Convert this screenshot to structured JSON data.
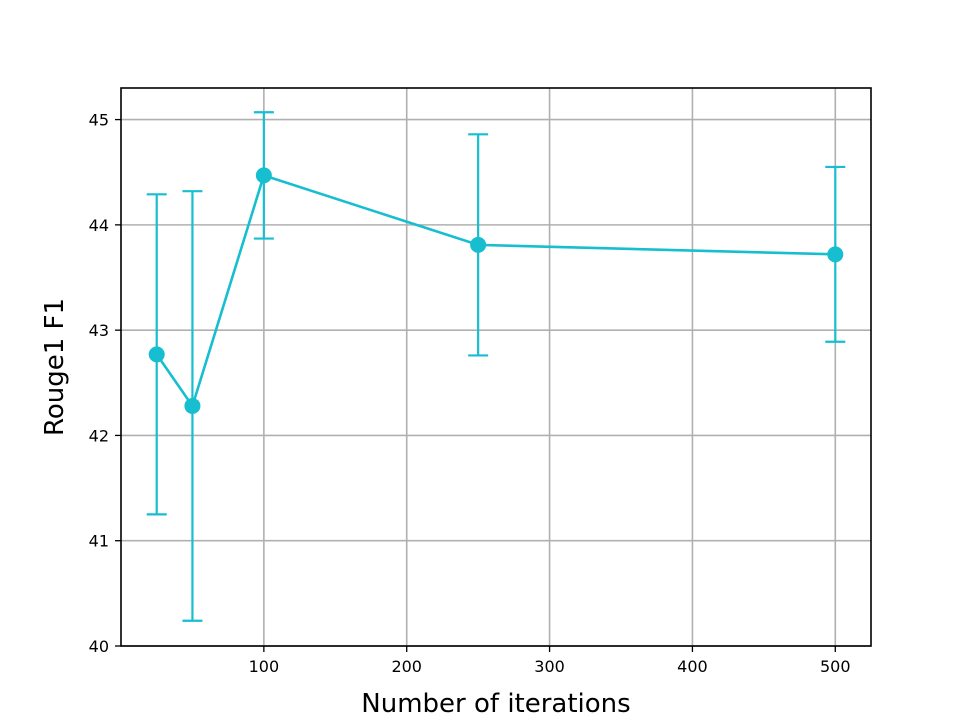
{
  "chart_data": {
    "type": "line",
    "title": "",
    "xlabel": "Number of iterations",
    "ylabel": "Rouge1 F1",
    "xlim": [
      0,
      525
    ],
    "ylim": [
      40,
      45.3
    ],
    "xticks": [
      100,
      200,
      300,
      400,
      500
    ],
    "yticks": [
      40,
      41,
      42,
      43,
      44,
      45
    ],
    "grid": true,
    "color": "#17becf",
    "series": [
      {
        "x": [
          25,
          50,
          100,
          250,
          500
        ],
        "values": [
          42.77,
          42.28,
          44.47,
          43.81,
          43.72
        ],
        "error_low": [
          41.25,
          40.24,
          43.87,
          42.76,
          42.89
        ],
        "error_high": [
          44.29,
          44.32,
          45.07,
          44.86,
          44.55
        ]
      }
    ]
  }
}
